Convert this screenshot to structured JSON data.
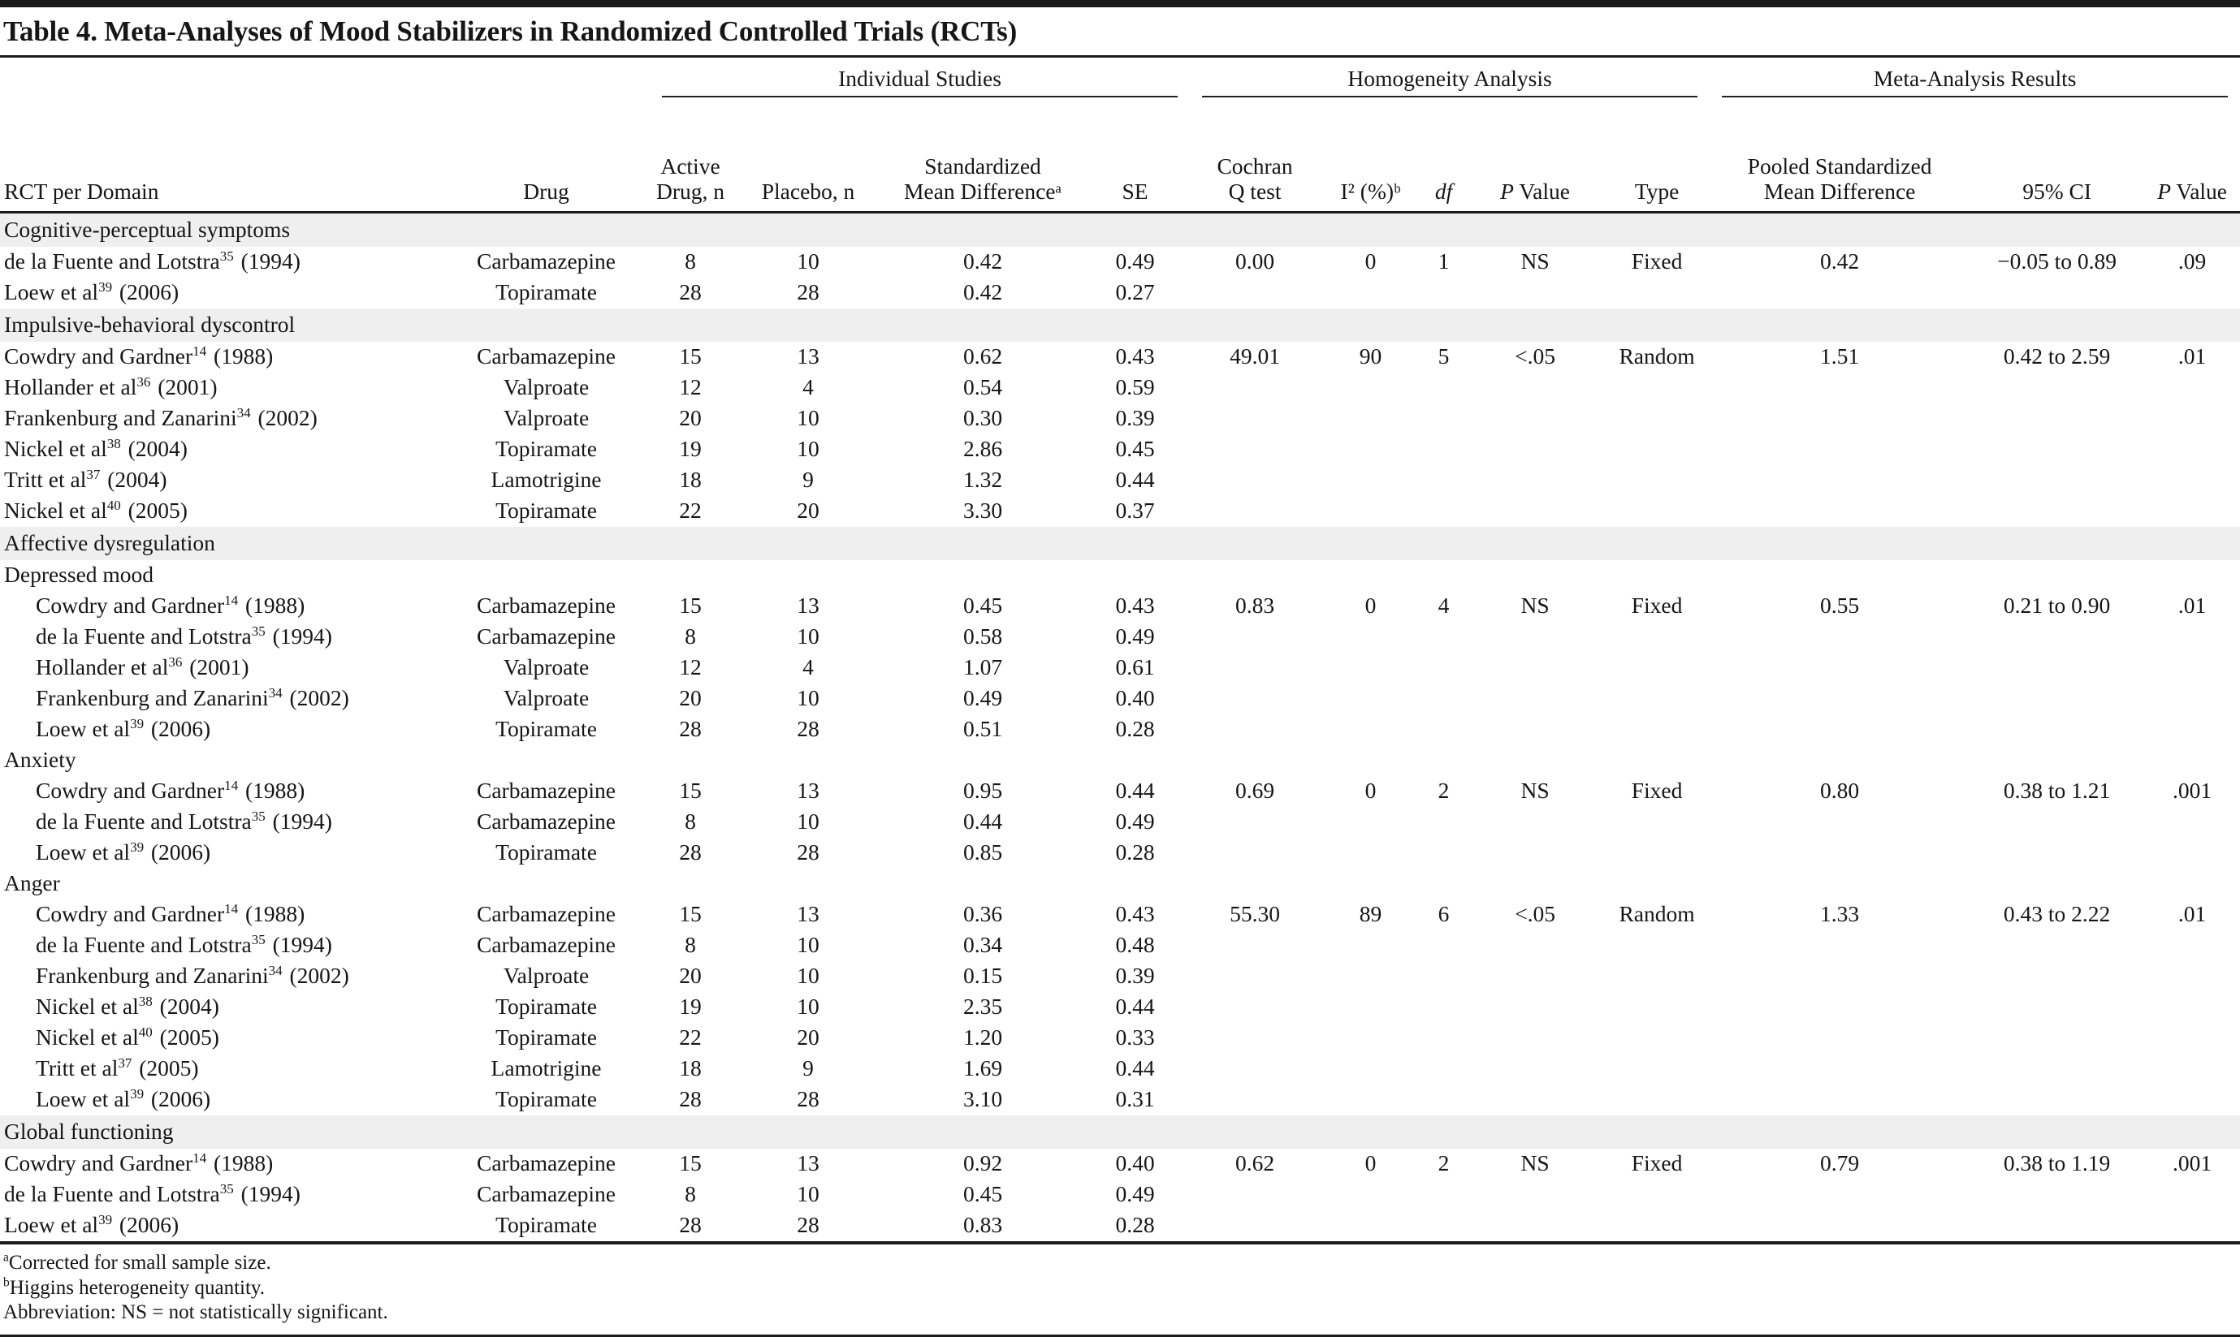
{
  "title": "Table 4. Meta-Analyses of Mood Stabilizers in Randomized Controlled Trials (RCTs)",
  "table": {
    "groups": [
      "Individual Studies",
      "Homogeneity Analysis",
      "Meta-Analysis Results"
    ],
    "columns": {
      "rct": "RCT per Domain",
      "drug": "Drug",
      "active_l1": "Active",
      "active_l2": "Drug, n",
      "placebo": "Placebo, n",
      "smd_l1": "Standardized",
      "smd_l2": "Mean Differenceᵃ",
      "se": "SE",
      "q_l1": "Cochran",
      "q_l2": "Q test",
      "i2": "I² (%)ᵇ",
      "df": "df",
      "p_i": "P",
      "p_r": "Value",
      "type": "Type",
      "pooled_l1": "Pooled Standardized",
      "pooled_l2": "Mean Difference",
      "ci": "95% CI"
    },
    "sections": [
      {
        "label": "Cognitive-perceptual symptoms",
        "rows": [
          {
            "study": "de la Fuente and Lotstra",
            "ref": "35",
            "year": "(1994)",
            "drug": "Carbamazepine",
            "active": "8",
            "placebo": "10",
            "smd": "0.42",
            "se": "0.49",
            "q": "0.00",
            "i2": "0",
            "df": "1",
            "p": "NS",
            "type": "Fixed",
            "pooled": "0.42",
            "ci": "−0.05 to 0.89",
            "pm": ".09"
          },
          {
            "study": "Loew et al",
            "ref": "39",
            "year": "(2006)",
            "drug": "Topiramate",
            "active": "28",
            "placebo": "28",
            "smd": "0.42",
            "se": "0.27"
          }
        ]
      },
      {
        "label": "Impulsive-behavioral dyscontrol",
        "rows": [
          {
            "study": "Cowdry and Gardner",
            "ref": "14",
            "year": "(1988)",
            "drug": "Carbamazepine",
            "active": "15",
            "placebo": "13",
            "smd": "0.62",
            "se": "0.43",
            "q": "49.01",
            "i2": "90",
            "df": "5",
            "p": "<.05",
            "type": "Random",
            "pooled": "1.51",
            "ci": "0.42 to 2.59",
            "pm": ".01"
          },
          {
            "study": "Hollander et al",
            "ref": "36",
            "year": "(2001)",
            "drug": "Valproate",
            "active": "12",
            "placebo": "4",
            "smd": "0.54",
            "se": "0.59"
          },
          {
            "study": "Frankenburg and Zanarini",
            "ref": "34",
            "year": "(2002)",
            "drug": "Valproate",
            "active": "20",
            "placebo": "10",
            "smd": "0.30",
            "se": "0.39"
          },
          {
            "study": "Nickel et al",
            "ref": "38",
            "year": "(2004)",
            "drug": "Topiramate",
            "active": "19",
            "placebo": "10",
            "smd": "2.86",
            "se": "0.45"
          },
          {
            "study": "Tritt et al",
            "ref": "37",
            "year": "(2004)",
            "drug": "Lamotrigine",
            "active": "18",
            "placebo": "9",
            "smd": "1.32",
            "se": "0.44"
          },
          {
            "study": "Nickel et al",
            "ref": "40",
            "year": "(2005)",
            "drug": "Topiramate",
            "active": "22",
            "placebo": "20",
            "smd": "3.30",
            "se": "0.37"
          }
        ]
      },
      {
        "label": "Affective dysregulation",
        "subsections": [
          {
            "label": "Depressed mood",
            "rows": [
              {
                "study": "Cowdry and Gardner",
                "ref": "14",
                "year": "(1988)",
                "drug": "Carbamazepine",
                "active": "15",
                "placebo": "13",
                "smd": "0.45",
                "se": "0.43",
                "q": "0.83",
                "i2": "0",
                "df": "4",
                "p": "NS",
                "type": "Fixed",
                "pooled": "0.55",
                "ci": "0.21 to 0.90",
                "pm": ".01"
              },
              {
                "study": "de la Fuente and Lotstra",
                "ref": "35",
                "year": "(1994)",
                "drug": "Carbamazepine",
                "active": "8",
                "placebo": "10",
                "smd": "0.58",
                "se": "0.49"
              },
              {
                "study": "Hollander et al",
                "ref": "36",
                "year": "(2001)",
                "drug": "Valproate",
                "active": "12",
                "placebo": "4",
                "smd": "1.07",
                "se": "0.61"
              },
              {
                "study": "Frankenburg and Zanarini",
                "ref": "34",
                "year": "(2002)",
                "drug": "Valproate",
                "active": "20",
                "placebo": "10",
                "smd": "0.49",
                "se": "0.40"
              },
              {
                "study": "Loew et al",
                "ref": "39",
                "year": "(2006)",
                "drug": "Topiramate",
                "active": "28",
                "placebo": "28",
                "smd": "0.51",
                "se": "0.28"
              }
            ]
          },
          {
            "label": "Anxiety",
            "rows": [
              {
                "study": "Cowdry and Gardner",
                "ref": "14",
                "year": "(1988)",
                "drug": "Carbamazepine",
                "active": "15",
                "placebo": "13",
                "smd": "0.95",
                "se": "0.44",
                "q": "0.69",
                "i2": "0",
                "df": "2",
                "p": "NS",
                "type": "Fixed",
                "pooled": "0.80",
                "ci": "0.38 to 1.21",
                "pm": ".001"
              },
              {
                "study": "de la Fuente and Lotstra",
                "ref": "35",
                "year": "(1994)",
                "drug": "Carbamazepine",
                "active": "8",
                "placebo": "10",
                "smd": "0.44",
                "se": "0.49"
              },
              {
                "study": "Loew et al",
                "ref": "39",
                "year": "(2006)",
                "drug": "Topiramate",
                "active": "28",
                "placebo": "28",
                "smd": "0.85",
                "se": "0.28"
              }
            ]
          },
          {
            "label": "Anger",
            "rows": [
              {
                "study": "Cowdry and Gardner",
                "ref": "14",
                "year": "(1988)",
                "drug": "Carbamazepine",
                "active": "15",
                "placebo": "13",
                "smd": "0.36",
                "se": "0.43",
                "q": "55.30",
                "i2": "89",
                "df": "6",
                "p": "<.05",
                "type": "Random",
                "pooled": "1.33",
                "ci": "0.43 to 2.22",
                "pm": ".01"
              },
              {
                "study": "de la Fuente and Lotstra",
                "ref": "35",
                "year": "(1994)",
                "drug": "Carbamazepine",
                "active": "8",
                "placebo": "10",
                "smd": "0.34",
                "se": "0.48"
              },
              {
                "study": "Frankenburg and Zanarini",
                "ref": "34",
                "year": "(2002)",
                "drug": "Valproate",
                "active": "20",
                "placebo": "10",
                "smd": "0.15",
                "se": "0.39"
              },
              {
                "study": "Nickel et al",
                "ref": "38",
                "year": "(2004)",
                "drug": "Topiramate",
                "active": "19",
                "placebo": "10",
                "smd": "2.35",
                "se": "0.44"
              },
              {
                "study": "Nickel et al",
                "ref": "40",
                "year": "(2005)",
                "drug": "Topiramate",
                "active": "22",
                "placebo": "20",
                "smd": "1.20",
                "se": "0.33"
              },
              {
                "study": "Tritt et al",
                "ref": "37",
                "year": "(2005)",
                "drug": "Lamotrigine",
                "active": "18",
                "placebo": "9",
                "smd": "1.69",
                "se": "0.44"
              },
              {
                "study": "Loew et al",
                "ref": "39",
                "year": "(2006)",
                "drug": "Topiramate",
                "active": "28",
                "placebo": "28",
                "smd": "3.10",
                "se": "0.31"
              }
            ]
          }
        ]
      },
      {
        "label": "Global functioning",
        "rows": [
          {
            "study": "Cowdry and Gardner",
            "ref": "14",
            "year": "(1988)",
            "drug": "Carbamazepine",
            "active": "15",
            "placebo": "13",
            "smd": "0.92",
            "se": "0.40",
            "q": "0.62",
            "i2": "0",
            "df": "2",
            "p": "NS",
            "type": "Fixed",
            "pooled": "0.79",
            "ci": "0.38 to 1.19",
            "pm": ".001"
          },
          {
            "study": "de la Fuente and Lotstra",
            "ref": "35",
            "year": "(1994)",
            "drug": "Carbamazepine",
            "active": "8",
            "placebo": "10",
            "smd": "0.45",
            "se": "0.49"
          },
          {
            "study": "Loew et al",
            "ref": "39",
            "year": "(2006)",
            "drug": "Topiramate",
            "active": "28",
            "placebo": "28",
            "smd": "0.83",
            "se": "0.28"
          }
        ]
      }
    ]
  },
  "footnotes": [
    {
      "marker": "a",
      "text": "Corrected for small sample size."
    },
    {
      "marker": "b",
      "text": "Higgins heterogeneity quantity."
    },
    {
      "marker": "",
      "text": "Abbreviation: NS = not statistically significant."
    }
  ],
  "colors": {
    "section_band": "#efefef",
    "rule": "#1c1c1c",
    "text": "#161616"
  }
}
